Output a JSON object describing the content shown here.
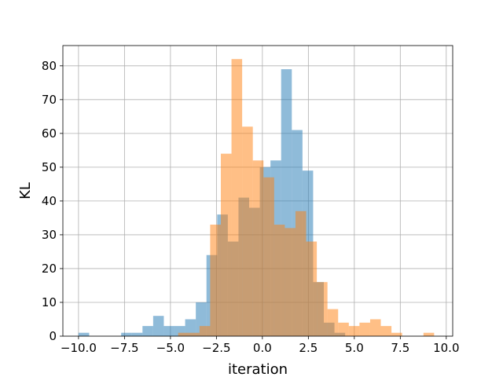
{
  "chart_data": {
    "type": "bar",
    "subtype": "overlaid-histogram",
    "xlabel": "iteration",
    "ylabel": "KL",
    "xlim": [
      -10.85,
      10.35
    ],
    "ylim": [
      0,
      86
    ],
    "xticks": [
      -10.0,
      -7.5,
      -5.0,
      -2.5,
      0.0,
      2.5,
      5.0,
      7.5,
      10.0
    ],
    "xtick_labels": [
      "−10.0",
      "−7.5",
      "−5.0",
      "−2.5",
      "0.0",
      "2.5",
      "5.0",
      "7.5",
      "10.0"
    ],
    "yticks": [
      0,
      10,
      20,
      30,
      40,
      50,
      60,
      70,
      80
    ],
    "ytick_labels": [
      "0",
      "10",
      "20",
      "30",
      "40",
      "50",
      "60",
      "70",
      "80"
    ],
    "grid": true,
    "legend": "none",
    "series": [
      {
        "color": "#1f77b4",
        "alpha": 0.5,
        "bin_width": 0.58,
        "bin_starts": [
          -10.0,
          -9.42,
          -8.84,
          -8.26,
          -7.68,
          -7.1,
          -6.52,
          -5.94,
          -5.36,
          -4.78,
          -4.2,
          -3.62,
          -3.04,
          -2.46,
          -1.88,
          -1.3,
          -0.72,
          -0.14,
          0.44,
          1.02,
          1.6,
          2.18,
          2.76,
          3.34,
          3.92
        ],
        "counts": [
          1,
          0,
          0,
          0,
          1,
          1,
          3,
          6,
          3,
          3,
          5,
          10,
          24,
          36,
          28,
          41,
          38,
          50,
          52,
          79,
          61,
          49,
          16,
          4,
          1
        ]
      },
      {
        "color": "#ff7f0e",
        "alpha": 0.5,
        "bin_width": 0.58,
        "bin_starts": [
          -4.58,
          -4.0,
          -3.42,
          -2.84,
          -2.26,
          -1.68,
          -1.1,
          -0.52,
          0.06,
          0.64,
          1.22,
          1.8,
          2.38,
          2.96,
          3.54,
          4.12,
          4.7,
          5.28,
          5.86,
          6.44,
          7.02,
          7.6,
          8.18,
          8.76
        ],
        "counts": [
          1,
          1,
          3,
          33,
          54,
          82,
          62,
          52,
          47,
          33,
          32,
          37,
          28,
          16,
          8,
          4,
          3,
          4,
          5,
          3,
          1,
          0,
          0,
          1
        ]
      }
    ]
  }
}
